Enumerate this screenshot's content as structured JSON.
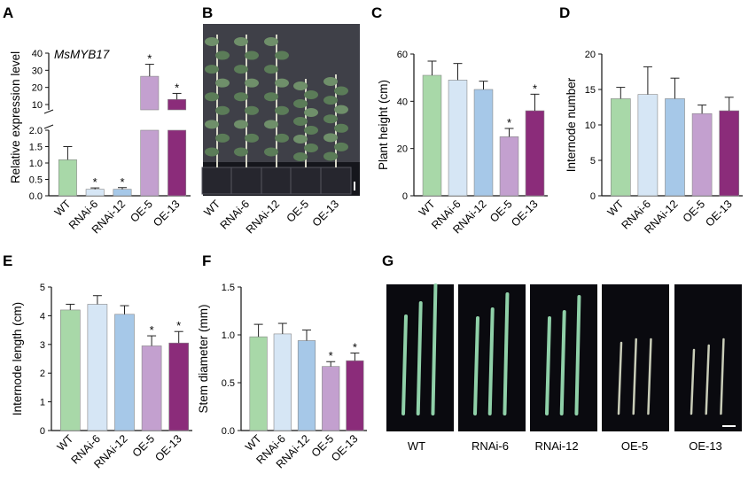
{
  "colors": {
    "WT": "#a8d8a8",
    "RNAi-6": "#d6e6f5",
    "RNAi-12": "#a6c8e8",
    "OE-5": "#c3a0cf",
    "OE-13": "#8b2c7a",
    "photo_bg": "#0a0a0f",
    "stem": "#8fd0a8"
  },
  "chart_data": [
    {
      "panel": "A",
      "type": "bar",
      "title": "MsMYB17",
      "ylabel": "Relative expression level",
      "categories": [
        "WT",
        "RNAi-6",
        "RNAi-12",
        "OE-5",
        "OE-13"
      ],
      "values": [
        1.1,
        0.2,
        0.2,
        26.5,
        13
      ],
      "errors": [
        0.4,
        0.04,
        0.05,
        7,
        3.5
      ],
      "significant": [
        false,
        true,
        true,
        true,
        true
      ],
      "broken_axis": true,
      "lower_ylim": [
        0,
        2.0
      ],
      "lower_ticks": [
        "0.0",
        "0.5",
        "1.0",
        "1.5",
        "2.0"
      ],
      "upper_ylim": [
        10,
        40
      ],
      "upper_ticks": [
        "10",
        "20",
        "30",
        "40"
      ]
    },
    {
      "panel": "C",
      "type": "bar",
      "ylabel": "Plant height (cm)",
      "categories": [
        "WT",
        "RNAi-6",
        "RNAi-12",
        "OE-5",
        "OE-13"
      ],
      "values": [
        51,
        49,
        45,
        25,
        36
      ],
      "errors": [
        6,
        7,
        3.5,
        3.5,
        7
      ],
      "significant": [
        false,
        false,
        false,
        true,
        true
      ],
      "ylim": [
        0,
        60
      ],
      "ticks": [
        "0",
        "20",
        "40",
        "60"
      ]
    },
    {
      "panel": "D",
      "type": "bar",
      "ylabel": "Internode number",
      "categories": [
        "WT",
        "RNAi-6",
        "RNAi-12",
        "OE-5",
        "OE-13"
      ],
      "values": [
        13.7,
        14.3,
        13.7,
        11.6,
        12
      ],
      "errors": [
        1.6,
        3.9,
        2.9,
        1.2,
        1.9
      ],
      "significant": [
        false,
        false,
        false,
        false,
        false
      ],
      "ylim": [
        0,
        20
      ],
      "ticks": [
        "0",
        "5",
        "10",
        "15",
        "20"
      ]
    },
    {
      "panel": "E",
      "type": "bar",
      "ylabel": "Internode length (cm)",
      "categories": [
        "WT",
        "RNAi-6",
        "RNAi-12",
        "OE-5",
        "OE-13"
      ],
      "values": [
        4.2,
        4.4,
        4.05,
        2.95,
        3.05
      ],
      "errors": [
        0.2,
        0.3,
        0.3,
        0.35,
        0.4
      ],
      "significant": [
        false,
        false,
        false,
        true,
        true
      ],
      "ylim": [
        0,
        5
      ],
      "ticks": [
        "0",
        "1",
        "2",
        "3",
        "4",
        "5"
      ]
    },
    {
      "panel": "F",
      "type": "bar",
      "ylabel": "Stem diameter (mm)",
      "categories": [
        "WT",
        "RNAi-6",
        "RNAi-12",
        "OE-5",
        "OE-13"
      ],
      "values": [
        0.98,
        1.01,
        0.94,
        0.67,
        0.73
      ],
      "errors": [
        0.13,
        0.11,
        0.11,
        0.05,
        0.08
      ],
      "significant": [
        false,
        false,
        false,
        true,
        true
      ],
      "ylim": [
        0,
        1.5
      ],
      "ticks": [
        "0.0",
        "0.5",
        "1.0",
        "1.5"
      ]
    }
  ],
  "panel_letters": [
    "A",
    "B",
    "C",
    "D",
    "E",
    "F",
    "G"
  ],
  "significance_marker": "*",
  "photo_B": {
    "labels": [
      "WT",
      "RNAi-6",
      "RNAi-12",
      "OE-5",
      "OE-13"
    ]
  },
  "photo_G": {
    "labels": [
      "WT",
      "RNAi-6",
      "RNAi-12",
      "OE-5",
      "OE-13"
    ],
    "stem_counts": [
      3,
      3,
      3,
      3,
      3
    ]
  }
}
